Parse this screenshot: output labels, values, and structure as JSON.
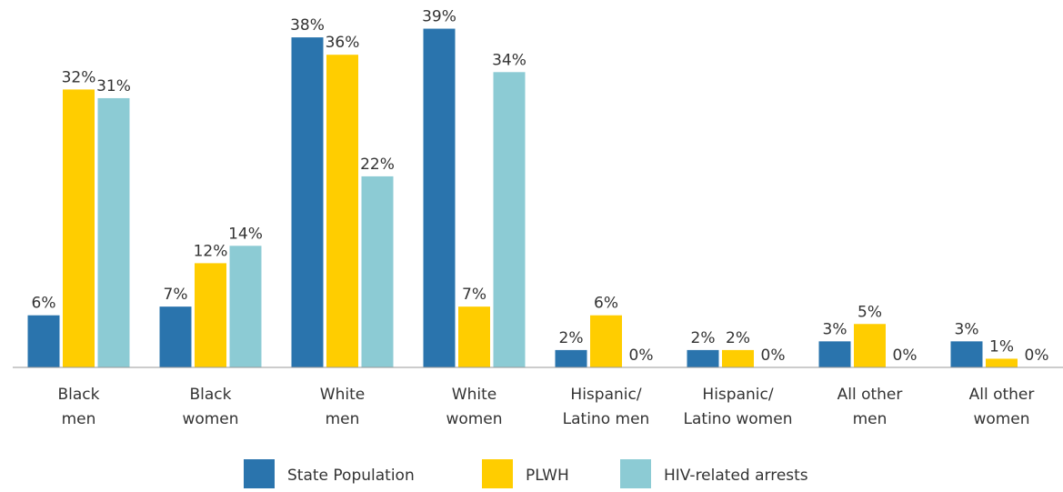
{
  "chart_data": {
    "type": "bar",
    "categories": [
      [
        "Black",
        "men"
      ],
      [
        "Black",
        "women"
      ],
      [
        "White",
        "men"
      ],
      [
        "White",
        "women"
      ],
      [
        "Hispanic/",
        "Latino men"
      ],
      [
        "Hispanic/",
        "Latino women"
      ],
      [
        "All other",
        "men"
      ],
      [
        "All other",
        "women"
      ]
    ],
    "series": [
      {
        "name": "State Population",
        "color": "#2a74ad",
        "values": [
          6,
          7,
          38,
          39,
          2,
          2,
          3,
          3
        ],
        "value_labels": [
          "6%",
          "7%",
          "38%",
          "39%",
          "2%",
          "2%",
          "3%",
          "3%"
        ]
      },
      {
        "name": "PLWH",
        "color": "#ffcd00",
        "values": [
          32,
          12,
          36,
          7,
          6,
          2,
          5,
          1
        ],
        "value_labels": [
          "32%",
          "12%",
          "36%",
          "7%",
          "6%",
          "2%",
          "5%",
          "1%"
        ]
      },
      {
        "name": "HIV-related arrests",
        "color": "#8ccbd4",
        "values": [
          31,
          14,
          22,
          34,
          0,
          0,
          0,
          0
        ],
        "value_labels": [
          "31%",
          "14%",
          "22%",
          "34%",
          "0%",
          "0%",
          "0%",
          "0%"
        ]
      }
    ],
    "ylim": [
      0,
      40
    ],
    "legend": "bottom"
  }
}
